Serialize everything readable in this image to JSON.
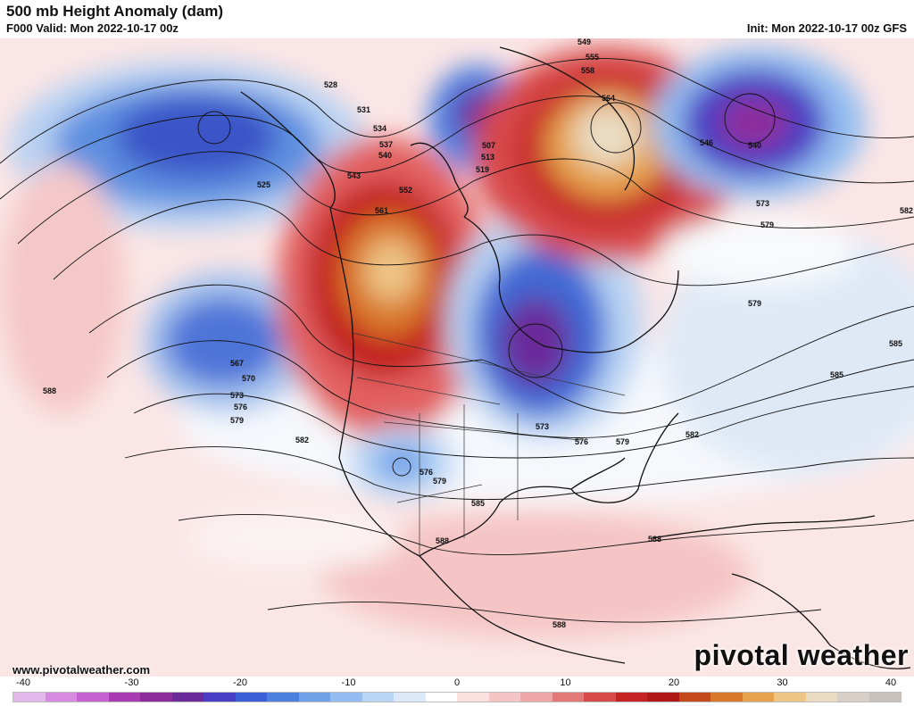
{
  "header": {
    "title": "500 mb Height Anomaly (dam)",
    "valid": "F000 Valid: Mon 2022-10-17 00z",
    "init": "Init: Mon 2022-10-17 00z GFS"
  },
  "footer": {
    "site": "www.pivotalweather.com",
    "brand": "pivotal weather"
  },
  "colorbar": {
    "ticks": [
      "-40",
      "-30",
      "-20",
      "-10",
      "0",
      "10",
      "20",
      "30",
      "40"
    ],
    "colors": [
      "#e3b8ea",
      "#d68be0",
      "#c561d0",
      "#a93cb3",
      "#8d2d9c",
      "#6a2a9a",
      "#4a3fc4",
      "#3a5fd6",
      "#4d7fe0",
      "#6fa0e8",
      "#93bdf0",
      "#b8d5f5",
      "#dbe9f8",
      "#ffffff",
      "#fbe0e0",
      "#f5c4c4",
      "#eea6a6",
      "#e37878",
      "#d84a4a",
      "#c42424",
      "#b01717",
      "#c54a1b",
      "#d9782c",
      "#e6a24c",
      "#eec585",
      "#e9dcc3",
      "#d8d0c8",
      "#c8c2be"
    ]
  },
  "contour_labels": [
    "528",
    "531",
    "534",
    "537",
    "540",
    "543",
    "546",
    "549",
    "552",
    "555",
    "558",
    "561",
    "564",
    "567",
    "570",
    "573",
    "576",
    "579",
    "582",
    "585",
    "588",
    "525",
    "519",
    "513",
    "507"
  ]
}
